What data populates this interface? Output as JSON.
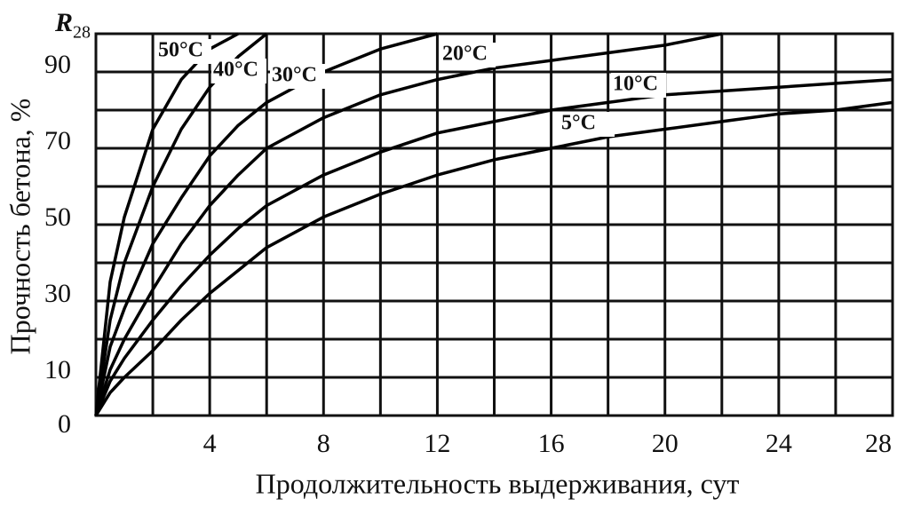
{
  "chart_data": {
    "type": "line",
    "x_label": "Продолжительность выдерживания, сут",
    "y_label": "Прочность бетона, %",
    "y_top_label": "R",
    "y_top_label_subscript": "28",
    "x": [
      0,
      0.5,
      1,
      2,
      3,
      4,
      5,
      6,
      8,
      10,
      12,
      14,
      16,
      18,
      20,
      22,
      24,
      26,
      28
    ],
    "series": [
      {
        "name": "50°C",
        "color": "#000000",
        "values": [
          0,
          35,
          52,
          75,
          88,
          96,
          100,
          null,
          null,
          null,
          null,
          null,
          null,
          null,
          null,
          null,
          null,
          null,
          null
        ]
      },
      {
        "name": "40°C",
        "color": "#000000",
        "values": [
          0,
          25,
          40,
          60,
          75,
          86,
          94,
          100,
          null,
          null,
          null,
          null,
          null,
          null,
          null,
          null,
          null,
          null,
          null
        ]
      },
      {
        "name": "30°C",
        "color": "#000000",
        "values": [
          0,
          18,
          28,
          45,
          57,
          68,
          76,
          82,
          90,
          96,
          100,
          null,
          null,
          null,
          null,
          null,
          null,
          null,
          null
        ]
      },
      {
        "name": "20°C",
        "color": "#000000",
        "values": [
          0,
          12,
          20,
          33,
          45,
          55,
          63,
          70,
          78,
          84,
          88,
          91,
          93,
          95,
          97,
          100,
          null,
          null,
          null
        ]
      },
      {
        "name": "10°C",
        "color": "#000000",
        "values": [
          0,
          9,
          15,
          25,
          34,
          42,
          49,
          55,
          63,
          69,
          74,
          77,
          80,
          82,
          84,
          85,
          86,
          87,
          88
        ]
      },
      {
        "name": "5°C",
        "color": "#000000",
        "values": [
          0,
          6,
          10,
          17,
          25,
          32,
          38,
          44,
          52,
          58,
          63,
          67,
          70,
          73,
          75,
          77,
          79,
          80,
          82
        ]
      }
    ],
    "xlim": [
      0,
      28
    ],
    "xticks": [
      4,
      8,
      12,
      16,
      20,
      24,
      28
    ],
    "x_minor_grid": [
      2,
      6,
      10,
      14,
      18,
      22,
      26
    ],
    "ylim": [
      0,
      100
    ],
    "yticks": [
      0,
      10,
      30,
      50,
      70,
      90
    ],
    "y_minor_grid": [
      20,
      40,
      60,
      80,
      100
    ],
    "grid": true
  }
}
